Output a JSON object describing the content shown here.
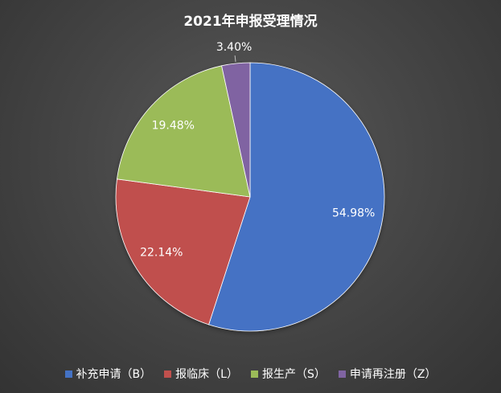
{
  "chart_data": {
    "type": "pie",
    "title": "2021年申报受理情况",
    "categories": [
      "补充申请（B）",
      "报临床（L）",
      "报生产（S）",
      "申请再注册（Z）"
    ],
    "values": [
      54.98,
      22.14,
      19.48,
      3.4
    ],
    "data_labels": [
      "54.98%",
      "22.14%",
      "19.48%",
      "3.40%"
    ],
    "colors": [
      "#4472c4",
      "#c0504d",
      "#9bbb59",
      "#8064a2"
    ],
    "legend_position": "bottom",
    "start_angle": "12 o'clock",
    "direction": "clockwise"
  }
}
